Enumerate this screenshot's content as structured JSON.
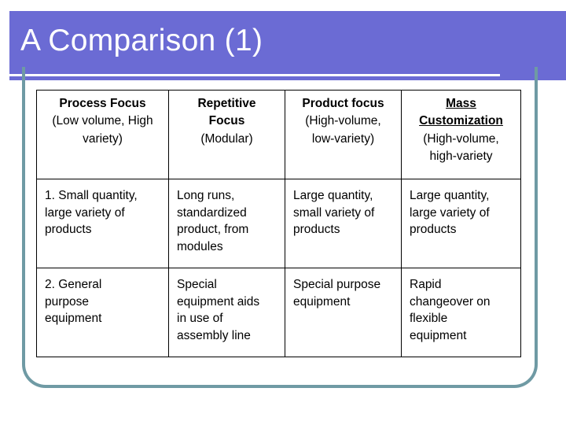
{
  "slide": {
    "title": "A Comparison (1)"
  },
  "table": {
    "headers": [
      {
        "title_lines": [
          "Process Focus"
        ],
        "sub_lines": [
          "(Low volume, High",
          "variety)"
        ],
        "underline": false
      },
      {
        "title_lines": [
          "Repetitive",
          "Focus"
        ],
        "sub_lines": [
          "(Modular)"
        ],
        "underline": false
      },
      {
        "title_lines": [
          "Product focus"
        ],
        "sub_lines": [
          "(High-volume,",
          "low-variety)"
        ],
        "underline": false
      },
      {
        "title_lines": [
          "Mass",
          "Customization"
        ],
        "sub_lines": [
          "(High-volume,",
          "high-variety"
        ],
        "underline": true
      }
    ],
    "rows": [
      [
        [
          "1.  Small quantity,",
          "large variety of",
          "products"
        ],
        [
          "Long runs,",
          "standardized",
          "product, from",
          "modules"
        ],
        [
          "Large quantity,",
          "small variety of",
          "products"
        ],
        [
          "Large quantity,",
          "large variety of",
          "products"
        ]
      ],
      [
        [
          "2.  General",
          "purpose",
          "equipment"
        ],
        [
          "Special",
          "equipment aids",
          "in use of",
          "assembly line"
        ],
        [
          "Special purpose",
          "equipment"
        ],
        [
          "Rapid",
          "changeover on",
          "flexible",
          "equipment"
        ]
      ]
    ]
  }
}
